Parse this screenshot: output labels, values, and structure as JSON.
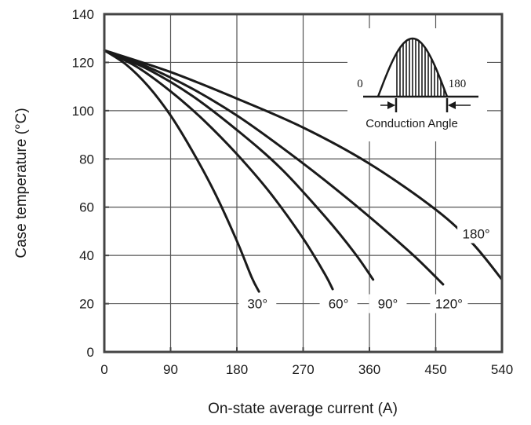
{
  "chart_data": {
    "type": "line",
    "title": "",
    "xlabel": "On-state average current (A)",
    "ylabel": "Case temperature (°C)",
    "xlim": [
      0,
      540
    ],
    "ylim": [
      0,
      140
    ],
    "xticks": [
      0,
      90,
      180,
      270,
      360,
      450,
      540
    ],
    "yticks": [
      0,
      20,
      40,
      60,
      80,
      100,
      120,
      140
    ],
    "grid": true,
    "legend": "none",
    "line_color": "#1a1a1a",
    "series": [
      {
        "name": "30°",
        "x": [
          0,
          30,
          60,
          90,
          120,
          150,
          180,
          200,
          210
        ],
        "y": [
          125,
          119,
          110,
          98,
          83,
          66,
          46,
          31,
          25
        ]
      },
      {
        "name": "60°",
        "x": [
          0,
          45,
          90,
          135,
          180,
          225,
          270,
          300,
          310
        ],
        "y": [
          125,
          118,
          108,
          96,
          82,
          66,
          47,
          32,
          26
        ]
      },
      {
        "name": "90°",
        "x": [
          0,
          60,
          120,
          180,
          240,
          300,
          340,
          365
        ],
        "y": [
          125,
          117,
          106,
          92,
          76,
          56,
          41,
          30
        ]
      },
      {
        "name": "120°",
        "x": [
          0,
          60,
          120,
          180,
          240,
          300,
          360,
          420,
          460
        ],
        "y": [
          125,
          118,
          109,
          98,
          85,
          71,
          56,
          40,
          28
        ]
      },
      {
        "name": "180°",
        "x": [
          0,
          90,
          180,
          270,
          360,
          450,
          500,
          540
        ],
        "y": [
          125,
          116,
          105,
          93,
          78,
          59,
          45,
          30
        ]
      }
    ],
    "curve_labels": [
      "30°",
      "60°",
      "90°",
      "120°",
      "180°"
    ],
    "inset": {
      "label_left": "0",
      "label_right": "180",
      "caption": "Conduction Angle"
    }
  }
}
